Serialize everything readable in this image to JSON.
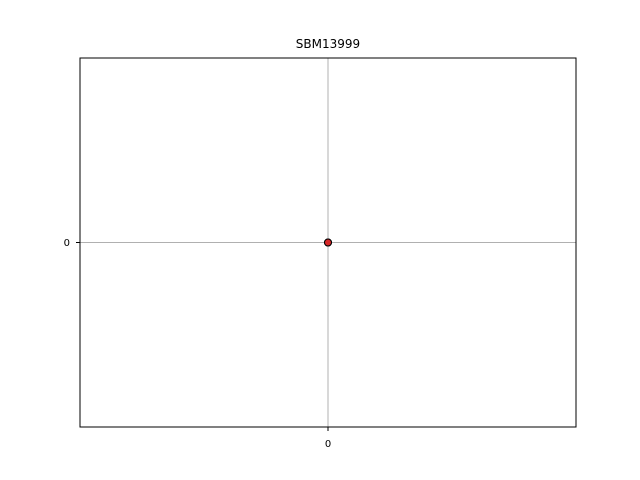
{
  "chart_data": {
    "type": "scatter",
    "title": "SBM13999",
    "xlabel": "",
    "ylabel": "",
    "x_ticks": [
      "0"
    ],
    "y_ticks": [
      "0"
    ],
    "xlim": [
      -1,
      1
    ],
    "ylim": [
      -1,
      1
    ],
    "grid": true,
    "points": [
      {
        "x": 0,
        "y": 0
      },
      {
        "x": 0,
        "y": 0
      }
    ],
    "colors": {
      "axes": "#000000",
      "grid": "#b0b0b0",
      "point_edge": "#000000",
      "point_fill": "#d62728"
    }
  }
}
